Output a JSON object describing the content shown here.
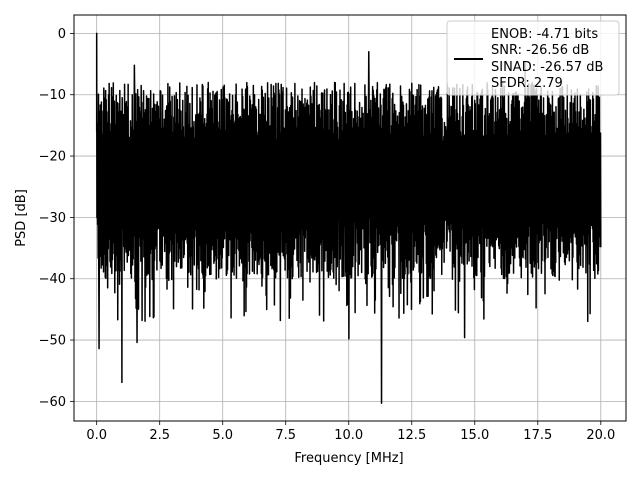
{
  "chart_data": {
    "type": "line",
    "xlabel": "Frequency [MHz]",
    "ylabel": "PSD [dB]",
    "xlim": [
      -0.9,
      21.0
    ],
    "ylim": [
      -63.2,
      3.0
    ],
    "xticks": [
      0.0,
      2.5,
      5.0,
      7.5,
      10.0,
      12.5,
      15.0,
      17.5,
      20.0
    ],
    "xtick_labels": [
      "0.0",
      "2.5",
      "5.0",
      "7.5",
      "10.0",
      "12.5",
      "15.0",
      "17.5",
      "20.0"
    ],
    "yticks": [
      0,
      -10,
      -20,
      -30,
      -40,
      -50,
      -60
    ],
    "ytick_labels": [
      "0",
      "−10",
      "−20",
      "−30",
      "−40",
      "−50",
      "−60"
    ],
    "grid": true,
    "legend_position": "top-right",
    "series": [
      {
        "color": "#000000",
        "x_range": [
          0.0,
          20.0
        ],
        "peak": {
          "x": 0.0,
          "y": 0.0
        },
        "floor_band": [
          -35,
          -8
        ],
        "notable_minima": [
          {
            "x": 0.1,
            "y": -51.4
          },
          {
            "x": 1.0,
            "y": -56.9
          },
          {
            "x": 1.6,
            "y": -50.4
          },
          {
            "x": 10.0,
            "y": -49.8
          },
          {
            "x": 11.3,
            "y": -60.3
          },
          {
            "x": 14.6,
            "y": -49.6
          }
        ],
        "notable_maxima": [
          {
            "x": 1.5,
            "y": -5.2
          },
          {
            "x": 10.8,
            "y": -3.0
          },
          {
            "x": 17.0,
            "y": -4.8
          }
        ]
      }
    ],
    "legend": {
      "lines": [
        "ENOB: -4.71 bits",
        "SNR: -26.56 dB",
        "SINAD: -26.57 dB",
        "SFDR: 2.79"
      ]
    }
  }
}
